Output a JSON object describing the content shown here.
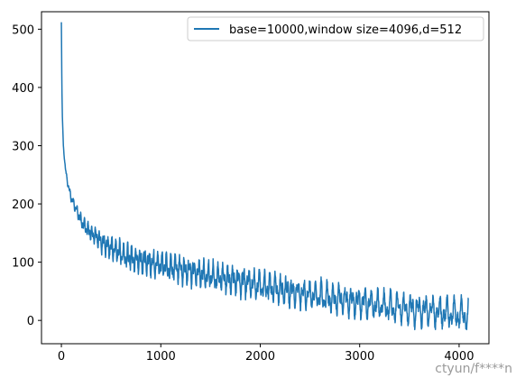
{
  "chart_data": {
    "type": "line",
    "title": "",
    "xlabel": "",
    "ylabel": "",
    "xlim": [
      -200,
      4300
    ],
    "ylim": [
      -40,
      530
    ],
    "grid": false,
    "legend_position": "top-right",
    "x_ticks": [
      0,
      1000,
      2000,
      3000,
      4000
    ],
    "x_tick_labels": [
      "0",
      "1000",
      "2000",
      "3000",
      "4000"
    ],
    "y_ticks": [
      0,
      100,
      200,
      300,
      400,
      500
    ],
    "y_tick_labels": [
      "0",
      "100",
      "200",
      "300",
      "400",
      "500"
    ],
    "series": [
      {
        "name": "base=10000,window size=4096,d=512",
        "color": "#1f77b4",
        "x": [
          0,
          2,
          5,
          10,
          20,
          40,
          70,
          100,
          150,
          200,
          250,
          300,
          400,
          500,
          600,
          700,
          800,
          1000,
          1200,
          1400,
          1600,
          1800,
          2000,
          2200,
          2400,
          2600,
          2800,
          3000,
          3200,
          3400,
          3600,
          3800,
          4000,
          4095
        ],
        "y": [
          512,
          470,
          400,
          350,
          300,
          260,
          230,
          210,
          190,
          170,
          160,
          150,
          135,
          125,
          115,
          108,
          103,
          95,
          88,
          80,
          73,
          67,
          60,
          53,
          47,
          42,
          36,
          31,
          26,
          22,
          18,
          14,
          10,
          8
        ],
        "oscillation_amplitude": [
          0,
          0,
          0,
          0,
          2,
          4,
          6,
          8,
          10,
          12,
          14,
          16,
          18,
          20,
          22,
          23,
          24,
          25,
          25,
          25,
          26,
          26,
          26,
          26,
          26,
          27,
          27,
          27,
          27,
          28,
          28,
          28,
          28,
          28
        ]
      }
    ]
  },
  "watermark": "ctyun/f****n"
}
